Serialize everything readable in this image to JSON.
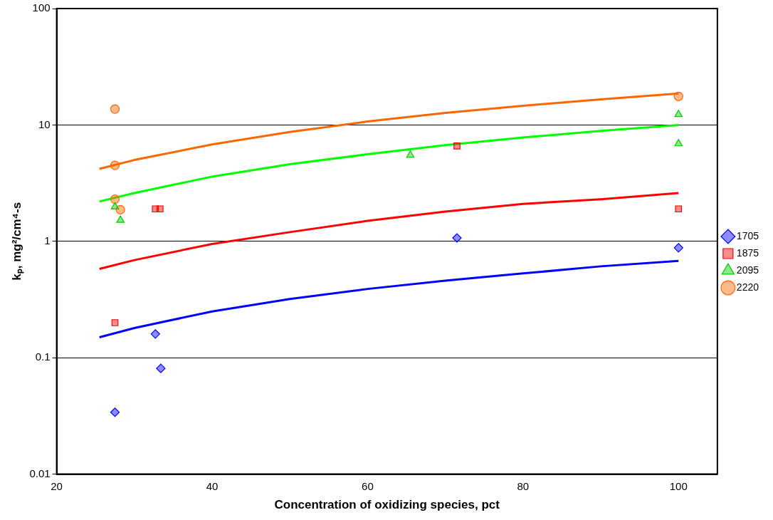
{
  "chart_data": {
    "type": "scatter",
    "xlabel": "Concentration of oxidizing species, pct",
    "ylabel": "kₚ, mg²/cm⁴-s",
    "log": "y",
    "grid": "y",
    "legend": "right",
    "xlim": [
      20,
      105
    ],
    "xticks": [
      20,
      40,
      60,
      80,
      100
    ],
    "ylim": [
      0.01,
      100
    ],
    "yticks": [
      0.01,
      0.1,
      1,
      10,
      100
    ],
    "series": [
      {
        "name": "1705",
        "color": "#0000ff",
        "marker": "diamond",
        "x": [
          27.5,
          32.7,
          33.4,
          71.5,
          100
        ],
        "values": [
          0.034,
          0.16,
          0.081,
          1.07,
          0.88
        ]
      },
      {
        "name": "1875",
        "color": "#ff0000",
        "marker": "square",
        "x": [
          27.5,
          32.7,
          33.3,
          71.5,
          100
        ],
        "values": [
          0.2,
          1.9,
          1.9,
          6.6,
          1.9
        ]
      },
      {
        "name": "2095",
        "color": "#00cc00",
        "marker": "triangle",
        "x": [
          27.5,
          28.2,
          65.5,
          100,
          100
        ],
        "values": [
          1.98,
          1.52,
          5.5,
          12.3,
          6.9
        ]
      },
      {
        "name": "2220",
        "color": "#ff6600",
        "marker": "circle",
        "x": [
          27.5,
          27.5,
          27.5,
          28.2,
          100
        ],
        "values": [
          13.7,
          4.5,
          2.3,
          1.87,
          17.6
        ]
      },
      {
        "type": "line",
        "color": "#0000ff",
        "marker": "none",
        "x": [
          25.5,
          30,
          40,
          50,
          60,
          70,
          80,
          90,
          100
        ],
        "values": [
          0.15,
          0.18,
          0.25,
          0.32,
          0.39,
          0.46,
          0.53,
          0.61,
          0.68
        ]
      },
      {
        "type": "line",
        "color": "#ff0000",
        "marker": "none",
        "x": [
          25.5,
          30,
          40,
          50,
          60,
          70,
          80,
          90,
          100
        ],
        "values": [
          0.58,
          0.69,
          0.95,
          1.2,
          1.5,
          1.8,
          2.1,
          2.3,
          2.6
        ]
      },
      {
        "type": "line",
        "color": "#00ff00",
        "marker": "none",
        "x": [
          25.5,
          30,
          40,
          50,
          60,
          70,
          80,
          90,
          100
        ],
        "values": [
          2.2,
          2.6,
          3.6,
          4.6,
          5.6,
          6.7,
          7.8,
          8.9,
          10
        ]
      },
      {
        "type": "line",
        "color": "#ff6600",
        "marker": "none",
        "x": [
          25.5,
          30,
          40,
          50,
          60,
          70,
          80,
          90,
          100
        ],
        "values": [
          4.2,
          5.0,
          6.8,
          8.7,
          10.7,
          12.7,
          14.6,
          16.6,
          18.6
        ]
      }
    ]
  }
}
